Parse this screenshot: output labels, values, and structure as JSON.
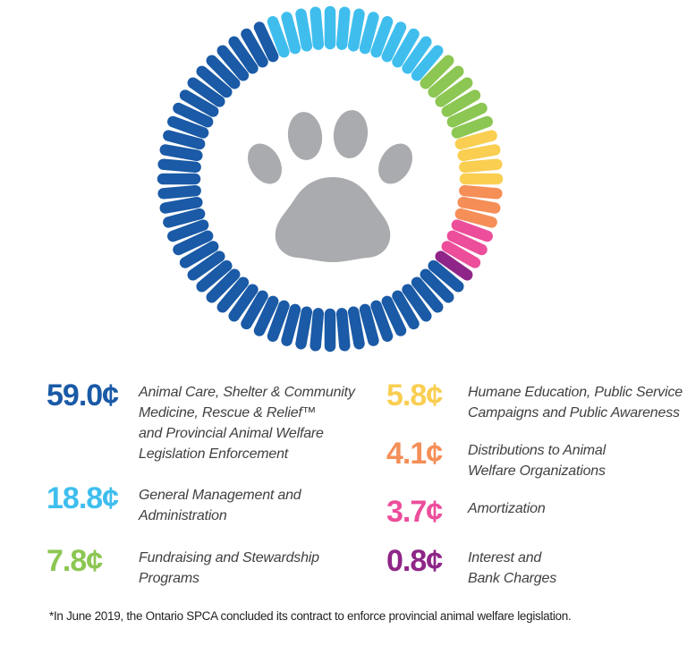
{
  "chart_data": {
    "type": "pie",
    "variant": "tick-ring-donut",
    "title": "",
    "unit": "cents",
    "center_icon": "paw-print",
    "segments": [
      {
        "id": "animal-care",
        "display": "59.0¢",
        "value": 59.0,
        "color": "#1A5AA6",
        "label": "Animal Care, Shelter & Community\nMedicine, Rescue & Relief™\nand Provincial Animal Welfare\nLegislation Enforcement"
      },
      {
        "id": "general-management",
        "display": "18.8¢",
        "value": 18.8,
        "color": "#3FBEEE",
        "label": "General Management and\nAdministration"
      },
      {
        "id": "fundraising",
        "display": "7.8¢",
        "value": 7.8,
        "color": "#8CC653",
        "label": "Fundraising and Stewardship\nPrograms"
      },
      {
        "id": "humane-education",
        "display": "5.8¢",
        "value": 5.8,
        "color": "#F9CE51",
        "label": "Humane Education, Public Service\nCampaigns and Public Awareness"
      },
      {
        "id": "distributions",
        "display": "4.1¢",
        "value": 4.1,
        "color": "#F58E57",
        "label": "Distributions to Animal\nWelfare Organizations"
      },
      {
        "id": "amortization",
        "display": "3.7¢",
        "value": 3.7,
        "color": "#EC4E9B",
        "label": "Amortization"
      },
      {
        "id": "interest",
        "display": "0.8¢",
        "value": 0.8,
        "color": "#8F2588",
        "label": "Interest and\nBank Charges"
      }
    ],
    "ring": {
      "total_ticks": 72,
      "start_angle_deg": -20,
      "clockwise": [
        {
          "segment": 1,
          "ticks": 13
        },
        {
          "segment": 2,
          "ticks": 6
        },
        {
          "segment": 3,
          "ticks": 4
        },
        {
          "segment": 4,
          "ticks": 3
        },
        {
          "segment": 5,
          "ticks": 3
        },
        {
          "segment": 6,
          "ticks": 1
        },
        {
          "segment": 0,
          "ticks": 42
        }
      ]
    },
    "legend_columns": {
      "left": [
        0,
        1,
        2
      ],
      "right": [
        3,
        4,
        5,
        6
      ]
    },
    "legend_position": "bottom"
  },
  "footnote": "*In June 2019, the Ontario SPCA concluded its contract to enforce provincial animal welfare legislation.",
  "colors": {
    "background": "#FFFFFF",
    "paw": "#A9ABAE",
    "label_text": "#414042",
    "footnote_text": "#231F20"
  }
}
